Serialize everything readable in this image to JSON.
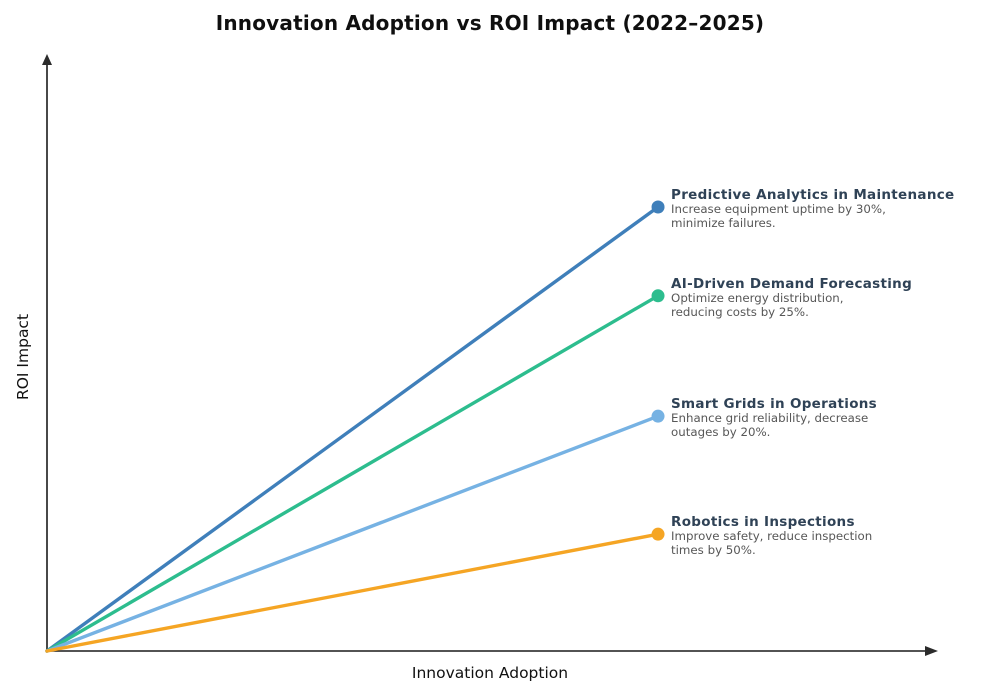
{
  "title": "Innovation Adoption vs ROI Impact (2022–2025)",
  "chart_data": {
    "type": "line",
    "title": "Innovation Adoption vs ROI Impact (2022–2025)",
    "xlabel": "Innovation Adoption",
    "ylabel": "ROI Impact",
    "xlim": [
      0,
      1
    ],
    "ylim": [
      0,
      1
    ],
    "grid": false,
    "legend": "inline-annotations",
    "axis_color": "#1a1a1a",
    "x": [
      0,
      0.692
    ],
    "series": [
      {
        "name": "Predictive Analytics in Maintenance",
        "description": [
          "Increase equipment uptime by 30%,",
          "minimize failures."
        ],
        "values": [
          0,
          0.745
        ],
        "color": "#3f7fba"
      },
      {
        "name": "AI-Driven Demand Forecasting",
        "description": [
          "Optimize energy distribution,",
          "reducing costs by 25%."
        ],
        "values": [
          0,
          0.596
        ],
        "color": "#2dbd8e"
      },
      {
        "name": "Smart Grids in Operations",
        "description": [
          "Enhance grid reliability, decrease",
          "outages by 20%."
        ],
        "values": [
          0,
          0.394
        ],
        "color": "#76b2e3"
      },
      {
        "name": "Robotics in Inspections",
        "description": [
          "Improve safety, reduce inspection",
          "times by 50%."
        ],
        "values": [
          0,
          0.196
        ],
        "color": "#f5a524"
      }
    ]
  }
}
